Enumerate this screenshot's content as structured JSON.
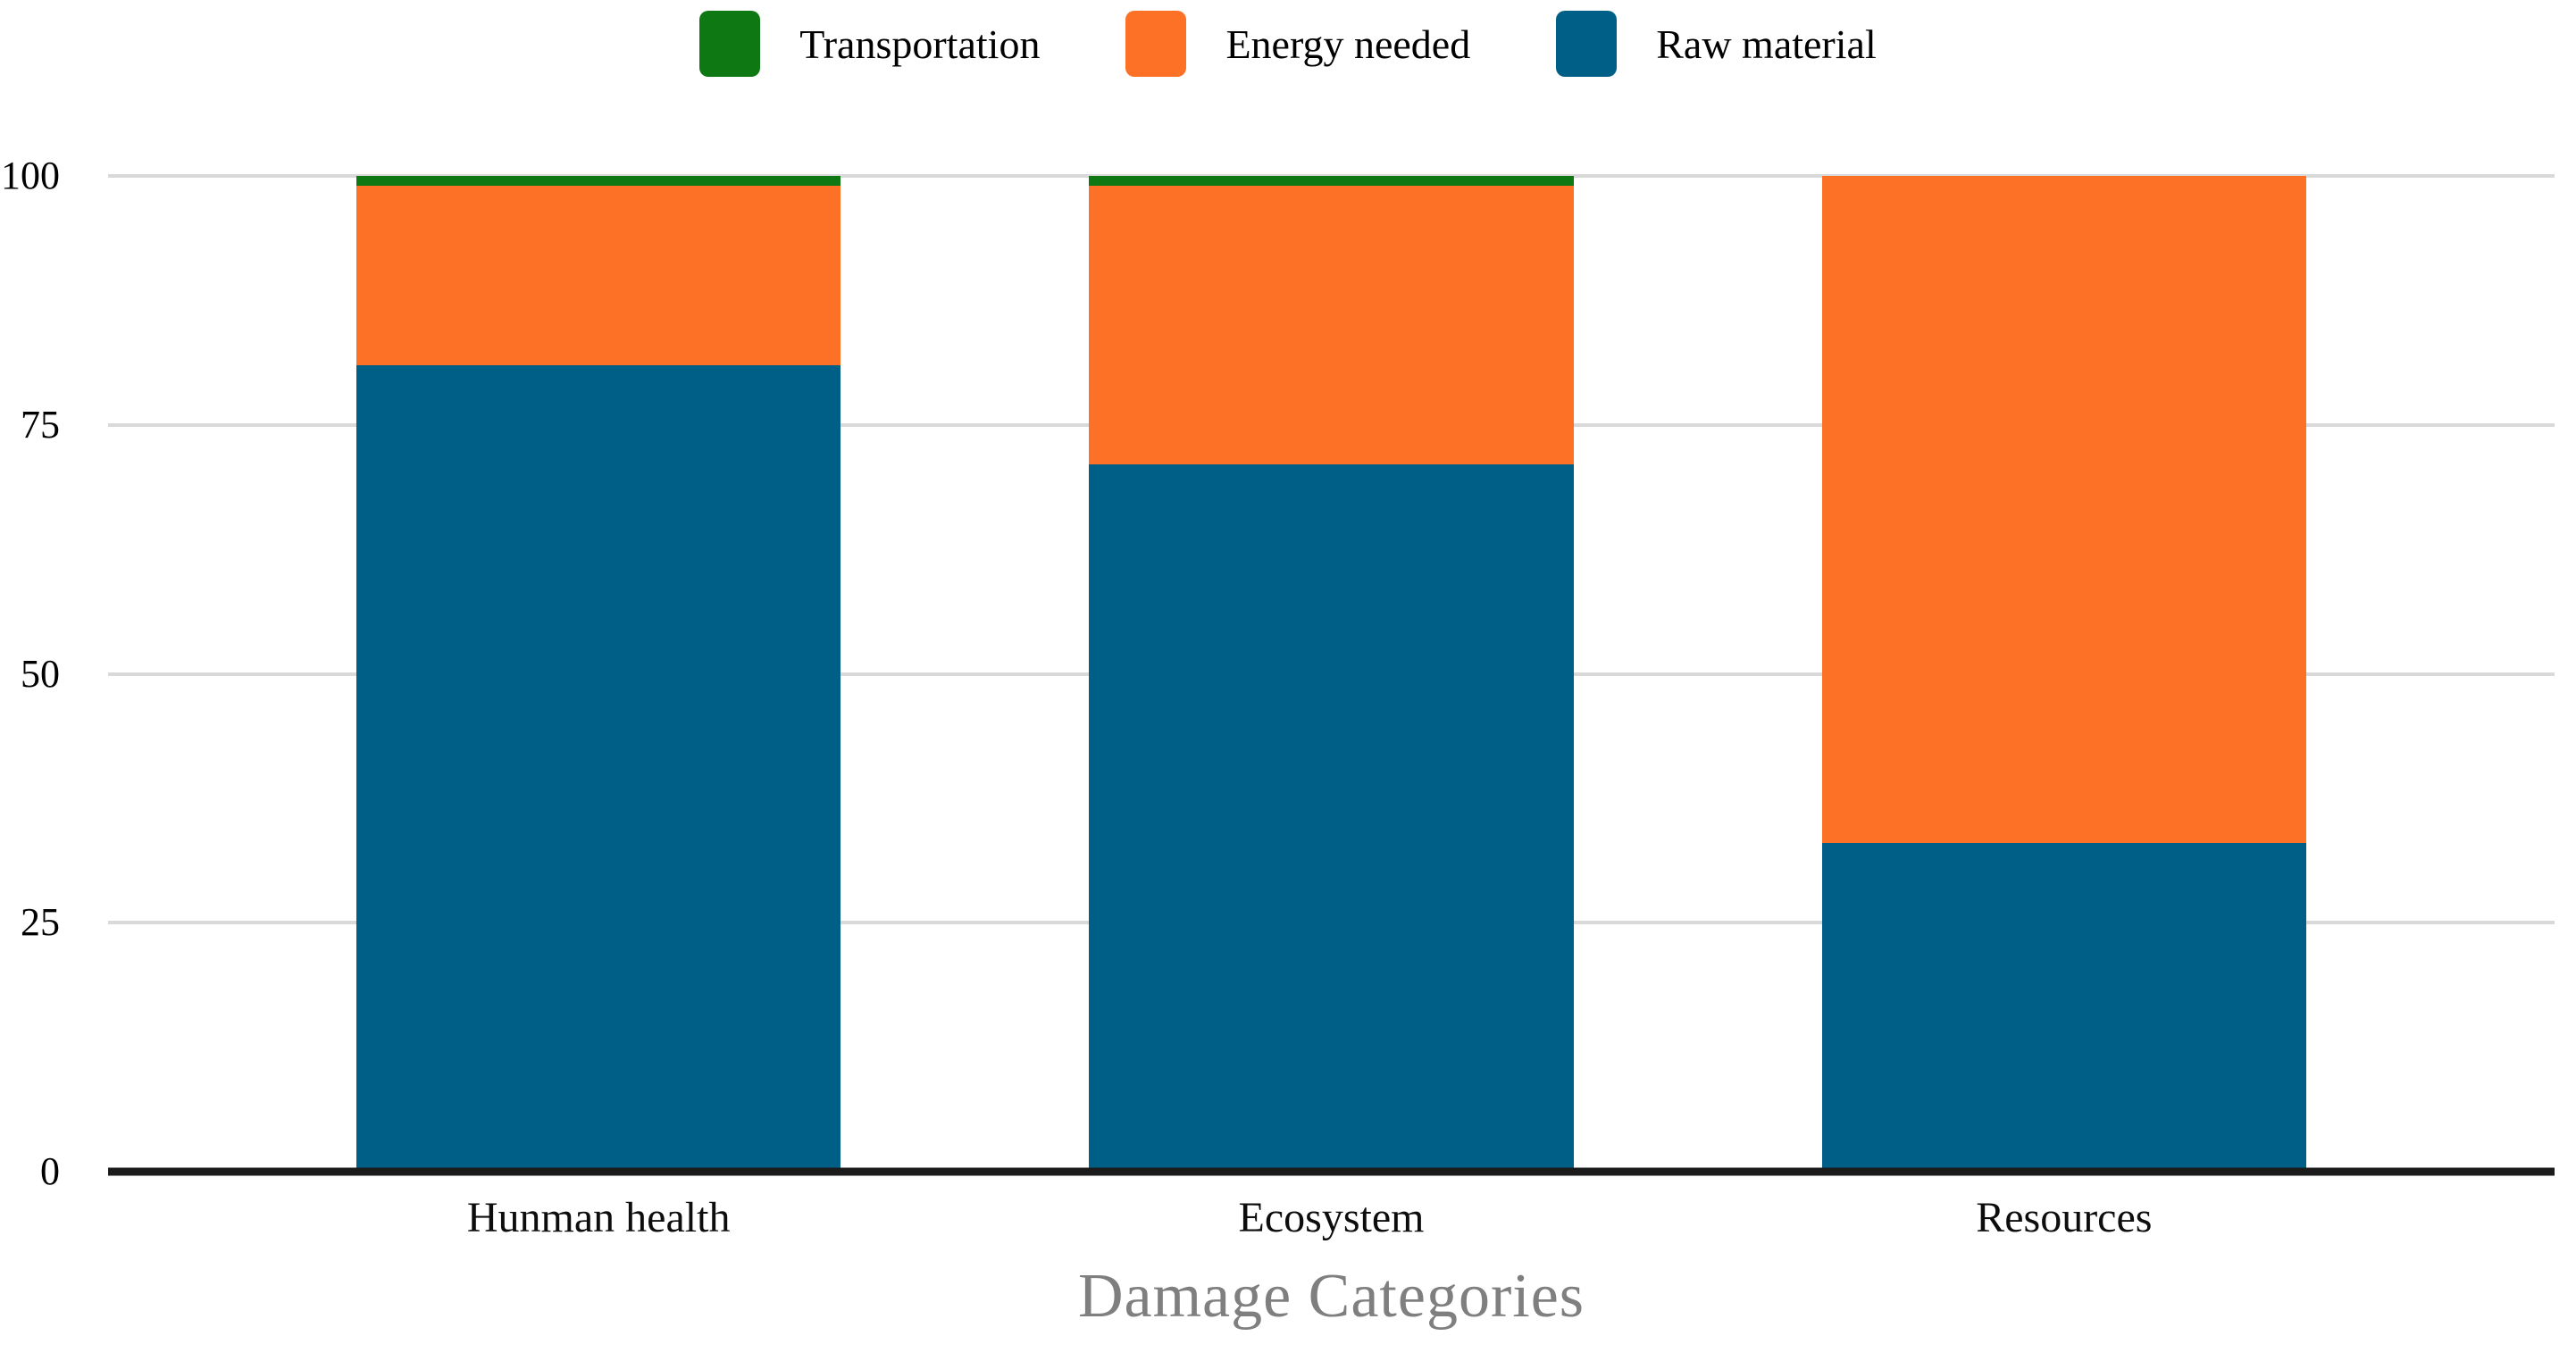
{
  "chart_data": {
    "type": "bar",
    "stacked": true,
    "title": "",
    "xlabel": "Damage Categories",
    "ylabel": "",
    "ylim": [
      0,
      100
    ],
    "yticks": [
      0,
      25,
      50,
      75,
      100
    ],
    "grid": true,
    "legend_position": "top-center",
    "categories": [
      "Hunman health",
      "Ecosystem",
      "Resources"
    ],
    "series": [
      {
        "name": "Raw material",
        "color": "#005F86",
        "values": [
          81,
          71,
          33
        ]
      },
      {
        "name": "Energy needed",
        "color": "#FC7126",
        "values": [
          18,
          28,
          67
        ]
      },
      {
        "name": "Transportation",
        "color": "#0E7912",
        "values": [
          1,
          1,
          0
        ]
      }
    ],
    "legend_order": [
      "Transportation",
      "Energy needed",
      "Raw material"
    ]
  }
}
